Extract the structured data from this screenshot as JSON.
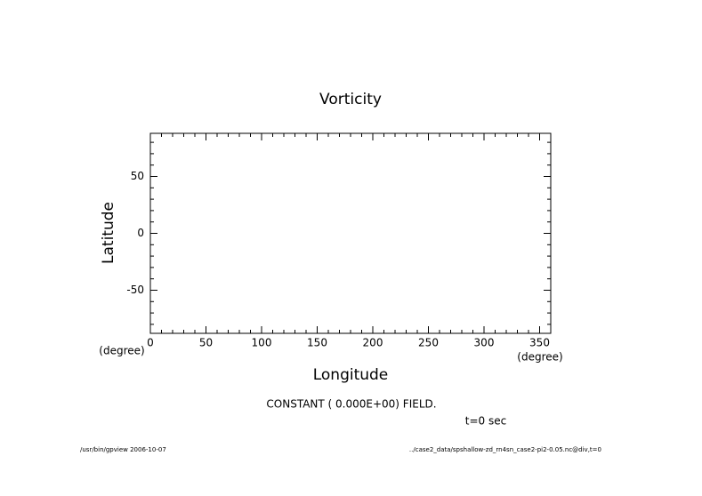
{
  "chart_data": {
    "type": "contour",
    "title": "Vorticity",
    "xlabel": "Longitude",
    "ylabel": "Latitude",
    "xunit": "(degree)",
    "yunit": "(degree)",
    "xlim": [
      0,
      360
    ],
    "ylim": [
      -87.9,
      87.9
    ],
    "xticks": [
      0,
      50,
      100,
      150,
      200,
      250,
      300,
      350
    ],
    "yticks": [
      -50,
      0,
      50
    ],
    "minor_tick_interval": 10,
    "annotations": [
      "CONSTANT ( 0.000E+00) FIELD.",
      "t=0 sec"
    ],
    "footer_left": "/usr/bin/gpview  2006-10-07",
    "footer_right": "../case2_data/spshallow-zd_rn4sn_case2-pi2-0.05.nc@div,t=0"
  }
}
